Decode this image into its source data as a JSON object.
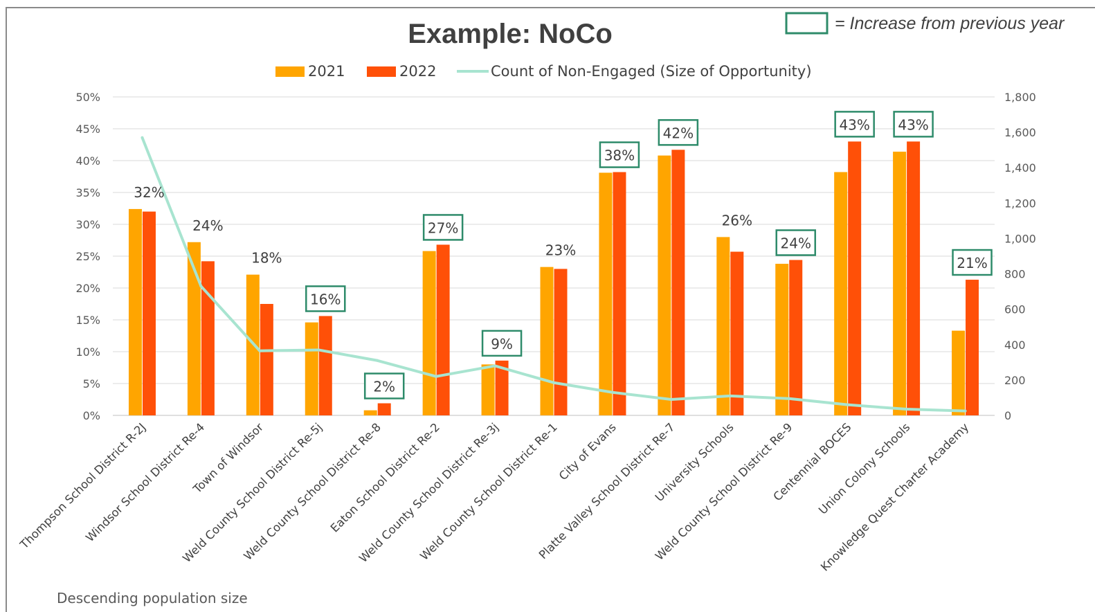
{
  "chart_data": {
    "type": "bar",
    "title": "Example: NoCo",
    "key_note": "= Increase from previous year",
    "footer_note": "Descending population size",
    "categories": [
      "Thompson School District R-2J",
      "Windsor School District Re-4",
      "Town of Windsor",
      "Weld County School District Re-5j",
      "Weld County School District Re-8",
      "Eaton School District Re-2",
      "Weld County School District Re-3j",
      "Weld County School District Re-1",
      "City of Evans",
      "Platte Valley School District Re-7",
      "University Schools",
      "Weld County School District Re-9",
      "Centennial BOCES",
      "Union Colony Schools",
      "Knowledge Quest Charter Academy"
    ],
    "series": [
      {
        "name": "2021",
        "type": "bar",
        "axis": "left",
        "color": "#FFA500",
        "values": [
          32.4,
          27.2,
          22.1,
          14.6,
          0.8,
          25.8,
          8.0,
          23.3,
          38.1,
          40.8,
          28.0,
          23.8,
          38.2,
          41.4,
          13.3
        ]
      },
      {
        "name": "2022",
        "type": "bar",
        "axis": "left",
        "color": "#FF5008",
        "values": [
          32.0,
          24.2,
          17.5,
          15.6,
          1.9,
          26.8,
          8.6,
          23.0,
          38.2,
          41.7,
          25.7,
          24.4,
          43.0,
          43.0,
          21.3
        ]
      },
      {
        "name": "Count of Non-Engaged (Size of Opportunity)",
        "type": "line",
        "axis": "right",
        "color": "#A8E4D0",
        "values": [
          1570,
          730,
          365,
          370,
          310,
          220,
          280,
          185,
          130,
          90,
          110,
          95,
          60,
          35,
          25
        ]
      }
    ],
    "data_labels": [
      "32%",
      "24%",
      "18%",
      "16%",
      "2%",
      "27%",
      "9%",
      "23%",
      "38%",
      "42%",
      "26%",
      "24%",
      "43%",
      "43%",
      "21%"
    ],
    "increase_boxed": [
      false,
      false,
      false,
      true,
      true,
      true,
      true,
      false,
      true,
      true,
      false,
      true,
      true,
      true,
      true
    ],
    "box_color": "#2E8B6A",
    "y_left": {
      "min": 0,
      "max": 50,
      "step": 5,
      "ticks": [
        "0%",
        "5%",
        "10%",
        "15%",
        "20%",
        "25%",
        "30%",
        "35%",
        "40%",
        "45%",
        "50%"
      ]
    },
    "y_right": {
      "min": 0,
      "max": 1800,
      "step": 200,
      "ticks": [
        "0",
        "200",
        "400",
        "600",
        "800",
        "1,000",
        "1,200",
        "1,400",
        "1,600",
        "1,800"
      ]
    },
    "grid": true,
    "legend_position": "top"
  }
}
